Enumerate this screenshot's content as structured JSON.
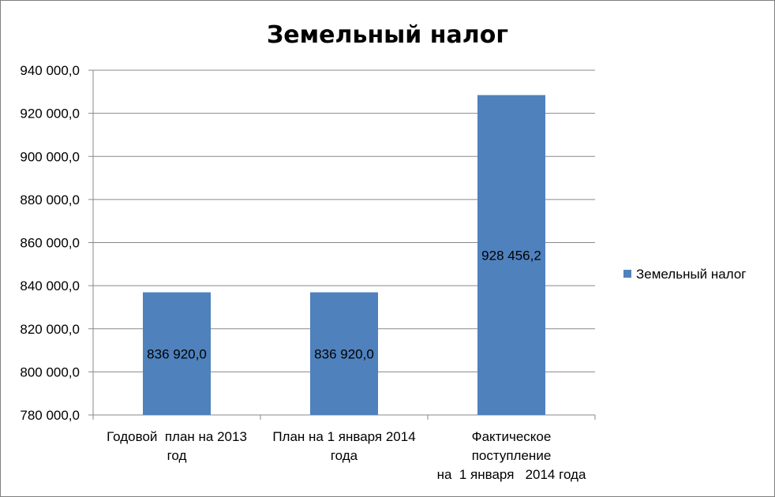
{
  "chart_data": {
    "type": "bar",
    "title": "Земельный налог",
    "categories": [
      [
        "Годовой  план на 2013",
        "год"
      ],
      [
        "План на 1 января 2014",
        "года"
      ],
      [
        "Фактическое",
        "поступление",
        "на  1 января   2014 года"
      ]
    ],
    "series": [
      {
        "name": "Земельный налог",
        "values": [
          836920.0,
          836920.0,
          928456.2
        ],
        "labels": [
          "836 920,0",
          "836 920,0",
          "928 456,2"
        ],
        "color": "#4f81bd"
      }
    ],
    "ylim": [
      780000,
      940000
    ],
    "yticks": [
      780000,
      800000,
      820000,
      840000,
      860000,
      880000,
      900000,
      920000,
      940000
    ],
    "ytick_labels": [
      "780 000,0",
      "800 000,0",
      "820 000,0",
      "840 000,0",
      "860 000,0",
      "880 000,0",
      "900 000,0",
      "920 000,0",
      "940 000,0"
    ],
    "grid": true,
    "legend_position": "right",
    "xlabel": "",
    "ylabel": ""
  }
}
